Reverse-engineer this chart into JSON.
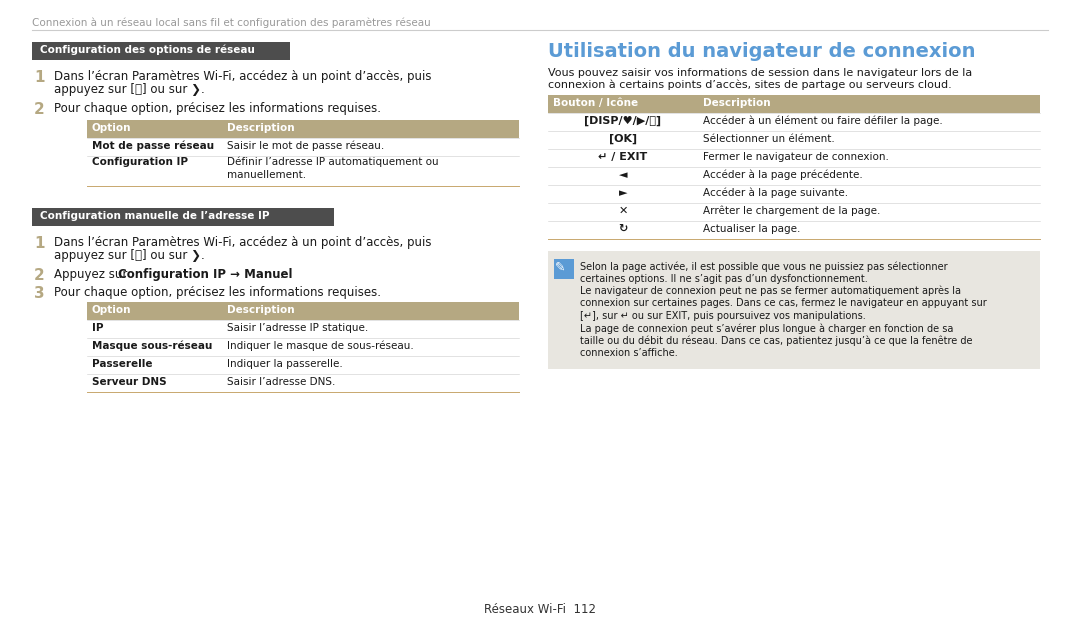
{
  "bg_color": "#ffffff",
  "header_text": "Connexion à un réseau local sans fil et configuration des paramètres réseau",
  "footer_text": "Réseaux Wi-Fi  112",
  "colors": {
    "table_header_bg": "#b5a882",
    "section_badge_bg": "#4d4d4d",
    "section_badge_text": "#ffffff",
    "right_title_color": "#5b9bd5",
    "note_bg": "#e8e6e0",
    "note_icon_bg": "#5b9bd5",
    "header_text_color": "#999999",
    "body_text_color": "#1a1a1a",
    "number_color": "#b5a882",
    "line_color": "#cccccc",
    "accent_line": "#c8a86e"
  },
  "section1_title": "Configuration des options de réseau",
  "section2_title": "Configuration manuelle de l’adresse IP",
  "right_title": "Utilisation du navigateur de connexion",
  "right_intro": [
    "Vous pouvez saisir vos informations de session dans le navigateur lors de la",
    "connexion à certains points d’accès, sites de partage ou serveurs cloud."
  ],
  "table1_rows": [
    [
      "Mot de passe réseau",
      "Saisir le mot de passe réseau."
    ],
    [
      "Configuration IP",
      "Définir l’adresse IP automatiquement ou\nmanuellement."
    ]
  ],
  "table2_rows": [
    [
      "IP",
      "Saisir l’adresse IP statique."
    ],
    [
      "Masque sous-réseau",
      "Indiquer le masque de sous-réseau."
    ],
    [
      "Passerelle",
      "Indiquer la passerelle."
    ],
    [
      "Serveur DNS",
      "Saisir l’adresse DNS."
    ]
  ],
  "right_table_rows": [
    [
      "[DISP/♥/▶/ⓨ]",
      "Accéder à un élément ou faire défiler la page."
    ],
    [
      "[OK]",
      "Sélectionner un élément."
    ],
    [
      "↵ / EXIT",
      "Fermer le navigateur de connexion."
    ],
    [
      "◄",
      "Accéder à la page précédente."
    ],
    [
      "►",
      "Accéder à la page suivante."
    ],
    [
      "✕",
      "Arrêter le chargement de la page."
    ],
    [
      "↻",
      "Actualiser la page."
    ]
  ],
  "note_lines": [
    "Selon la page activée, il est possible que vous ne puissiez pas sélectionner",
    "certaines options. Il ne s’agit pas d’un dysfonctionnement.",
    "Le navigateur de connexion peut ne pas se fermer automatiquement après la",
    "connexion sur certaines pages. Dans ce cas, fermez le navigateur en appuyant sur",
    "[↵], sur ↵ ou sur EXIT, puis poursuivez vos manipulations.",
    "La page de connexion peut s’avérer plus longue à charger en fonction de sa",
    "taille ou du débit du réseau. Dans ce cas, patientez jusqu’à ce que la fenêtre de",
    "connexion s’affiche."
  ]
}
